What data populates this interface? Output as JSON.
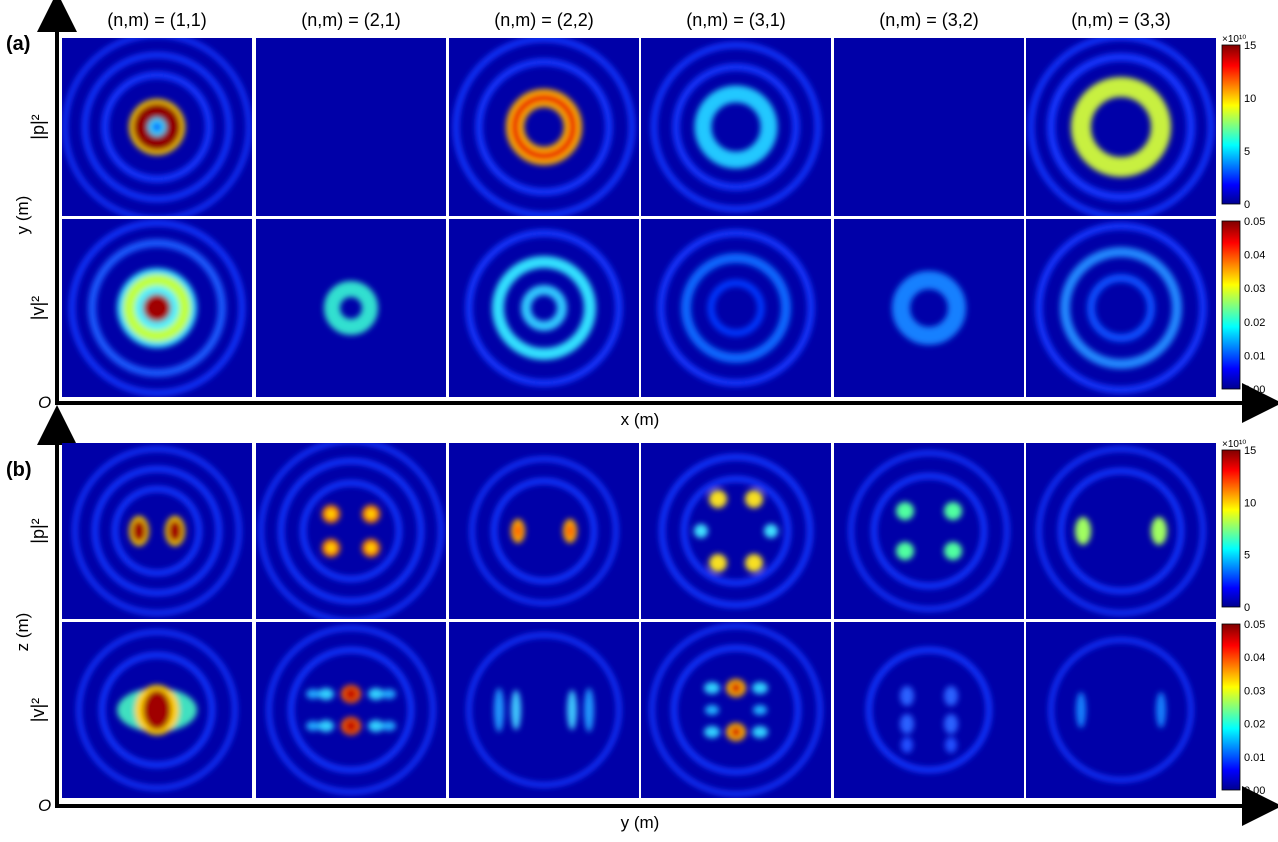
{
  "figure": {
    "columns": [
      "(n,m) = (1,1)",
      "(n,m) = (2,1)",
      "(n,m) = (2,2)",
      "(n,m) = (3,1)",
      "(n,m) = (3,2)",
      "(n,m) = (3,3)"
    ],
    "panels": [
      {
        "label": "(a)",
        "rows": [
          "|p|²",
          "|v|²"
        ],
        "x_axis": "x (m)",
        "y_axis": "y (m)",
        "origin": "O",
        "colorbars": [
          {
            "multiplier": "×10¹⁰",
            "ticks": [
              "0",
              "5",
              "10",
              "15"
            ]
          },
          {
            "ticks": [
              "0.00",
              "0.01",
              "0.02",
              "0.03",
              "0.04",
              "0.05"
            ]
          }
        ]
      },
      {
        "label": "(b)",
        "rows": [
          "|p|²",
          "|v|²"
        ],
        "x_axis": "y (m)",
        "y_axis": "z (m)",
        "origin": "O",
        "colorbars": [
          {
            "multiplier": "×10¹⁰",
            "ticks": [
              "0",
              "5",
              "10",
              "15"
            ]
          },
          {
            "ticks": [
              "0.00",
              "0.01",
              "0.02",
              "0.03",
              "0.04",
              "0.05"
            ]
          }
        ]
      }
    ]
  }
}
